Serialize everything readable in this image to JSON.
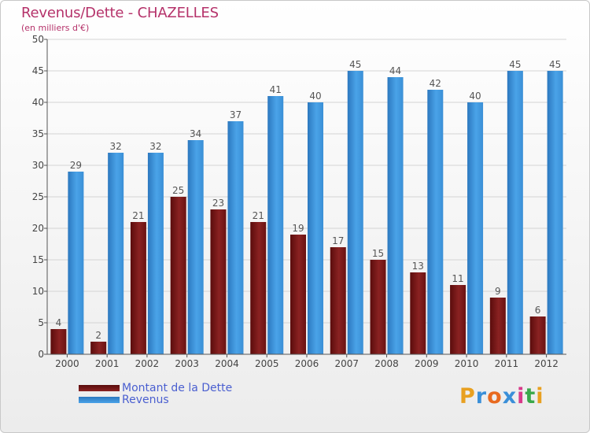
{
  "header": {
    "title": "Revenus/Dette - CHAZELLES",
    "subtitle": "(en milliers d'€)"
  },
  "colors": {
    "dette": "#7a1818",
    "revenus": "#3d95db",
    "title": "#b5326a"
  },
  "chart_data": {
    "type": "bar",
    "title": "Revenus/Dette - CHAZELLES",
    "subtitle": "(en milliers d'€)",
    "categories": [
      "2000",
      "2001",
      "2002",
      "2003",
      "2004",
      "2005",
      "2006",
      "2007",
      "2008",
      "2009",
      "2010",
      "2011",
      "2012"
    ],
    "series": [
      {
        "name": "Montant de la Dette",
        "values": [
          4,
          2,
          21,
          25,
          23,
          21,
          19,
          17,
          15,
          13,
          11,
          9,
          6
        ]
      },
      {
        "name": "Revenus",
        "values": [
          29,
          32,
          32,
          34,
          37,
          41,
          40,
          45,
          44,
          42,
          40,
          45,
          45
        ]
      }
    ],
    "ylim": [
      0,
      50
    ],
    "yticks": [
      0,
      5,
      10,
      15,
      20,
      25,
      30,
      35,
      40,
      45,
      50
    ],
    "grid": true,
    "legend_position": "bottom-left"
  },
  "legend": {
    "items": [
      {
        "label": "Montant de la Dette"
      },
      {
        "label": "Revenus"
      }
    ]
  },
  "logo": {
    "letters": [
      "P",
      "r",
      "o",
      "x",
      "i",
      "t",
      "i"
    ],
    "colors": [
      "#e8a020",
      "#3a8fd8",
      "#e86a20",
      "#3a8fd8",
      "#d83a8a",
      "#3aa84a",
      "#e8a020"
    ]
  }
}
